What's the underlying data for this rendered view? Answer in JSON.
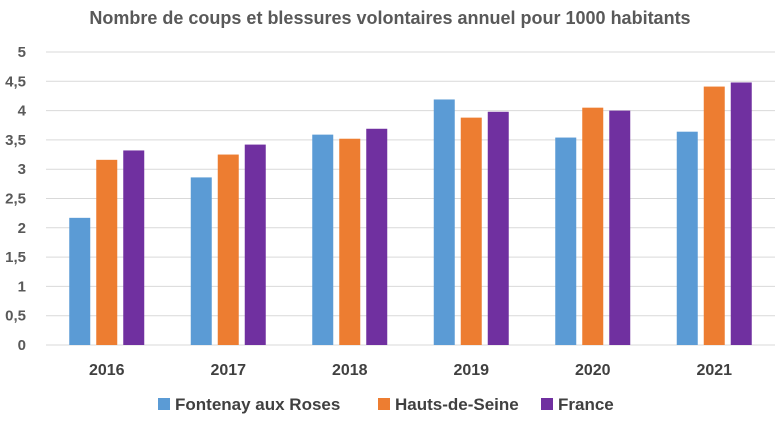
{
  "chart_data": {
    "type": "bar",
    "title": "Nombre de coups et blessures volontaires annuel pour 1000 habitants",
    "categories": [
      "2016",
      "2017",
      "2018",
      "2019",
      "2020",
      "2021"
    ],
    "series": [
      {
        "name": "Fontenay aux Roses",
        "color": "#5b9bd5",
        "values": [
          2.17,
          2.86,
          3.59,
          4.19,
          3.54,
          3.64
        ]
      },
      {
        "name": "Hauts-de-Seine",
        "color": "#ed7d31",
        "values": [
          3.16,
          3.25,
          3.52,
          3.88,
          4.05,
          4.41
        ]
      },
      {
        "name": "France",
        "color": "#7030a0",
        "values": [
          3.32,
          3.42,
          3.69,
          3.98,
          4.0,
          4.48
        ]
      }
    ],
    "ylim": [
      0,
      5
    ],
    "yticks": [
      "0",
      "0,5",
      "1",
      "1,5",
      "2",
      "2,5",
      "3",
      "3,5",
      "4",
      "4,5",
      "5"
    ],
    "grid": true,
    "legend_position": "bottom"
  }
}
